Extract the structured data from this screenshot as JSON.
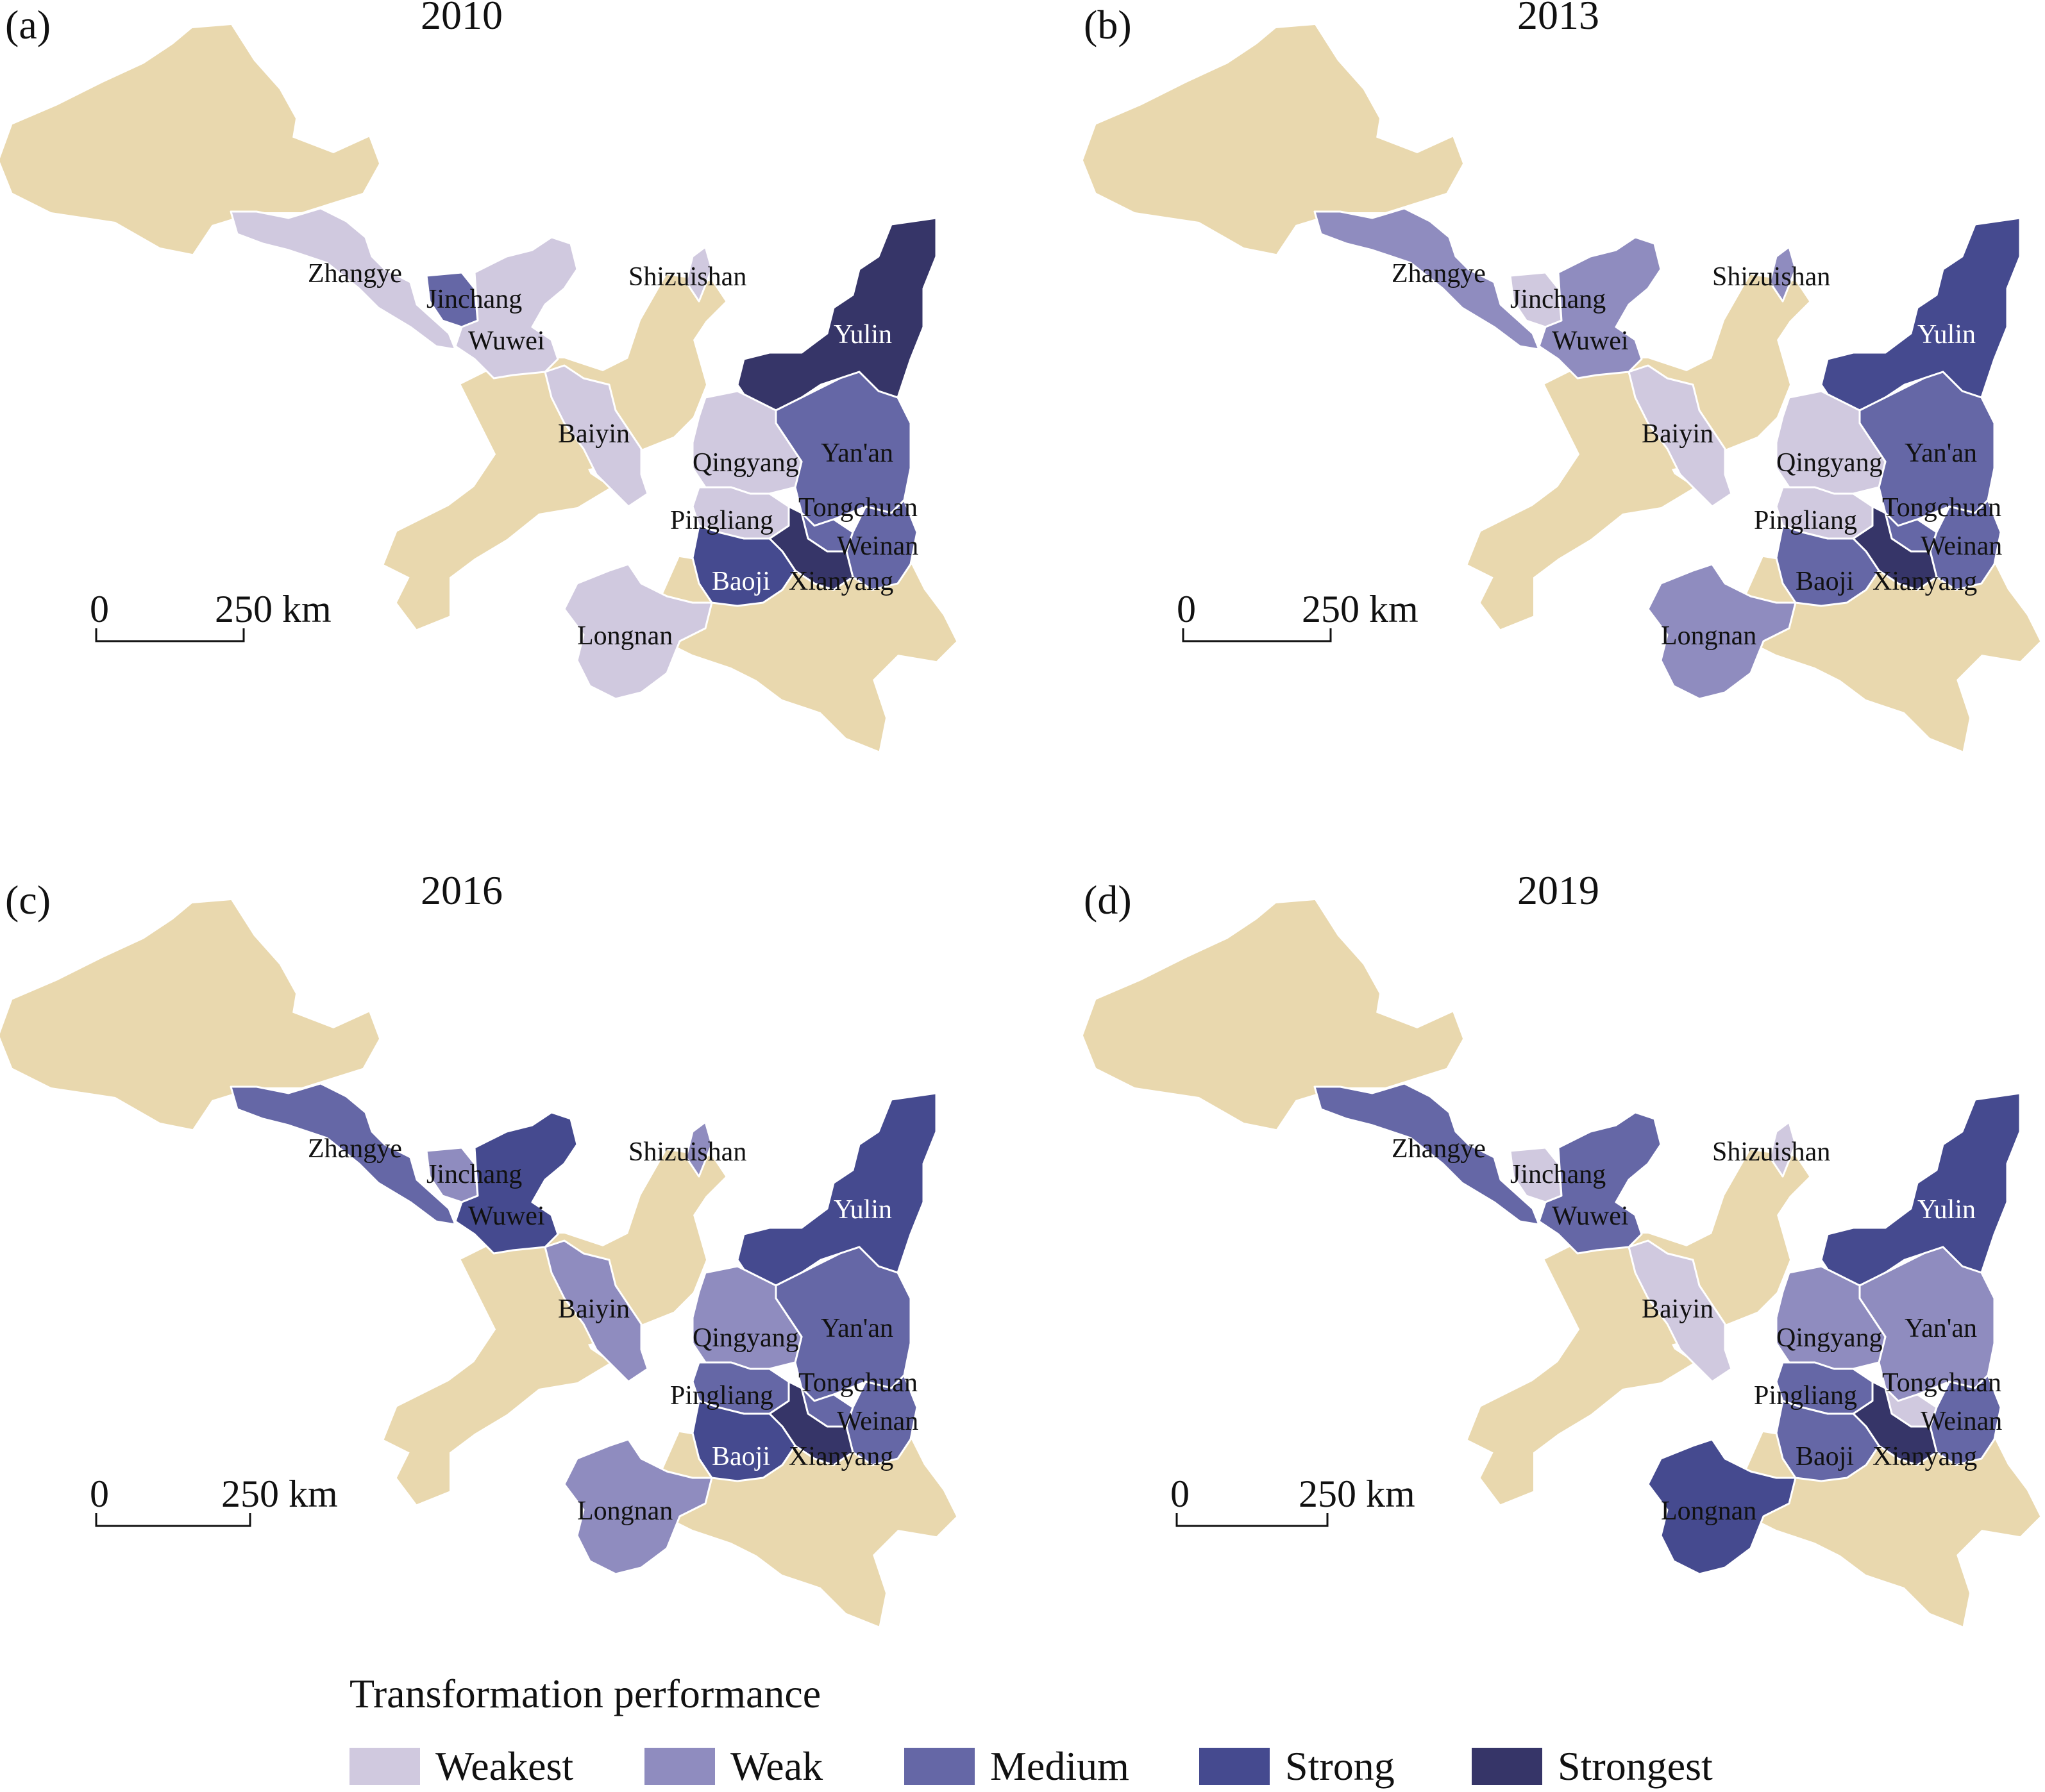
{
  "colors": {
    "background_province": "#e9d8ae",
    "weakest": "#d0c9df",
    "weak": "#8f8cbf",
    "medium": "#6567a6",
    "strong": "#454a8f",
    "strongest": "#363568",
    "border": "#ffffff"
  },
  "levels": [
    "weakest",
    "weak",
    "medium",
    "strong",
    "strongest"
  ],
  "panels": [
    {
      "letter": "(a)",
      "year": "2010",
      "scale": {
        "zero": "0",
        "distance": "250 km"
      },
      "cities": {
        "Zhangye": "weakest",
        "Jinchang": "medium",
        "Wuwei": "weakest",
        "Baiyin": "weakest",
        "Shizuishan": "weakest",
        "Yulin": "strongest",
        "Yan'an": "medium",
        "Qingyang": "weakest",
        "Pingliang": "weakest",
        "Tongchuan": "medium",
        "Weinan": "medium",
        "Xianyang": "strongest",
        "Baoji": "strong",
        "Longnan": "weakest"
      }
    },
    {
      "letter": "(b)",
      "year": "2013",
      "scale": {
        "zero": "0",
        "distance": "250 km"
      },
      "cities": {
        "Zhangye": "weak",
        "Jinchang": "weakest",
        "Wuwei": "weak",
        "Baiyin": "weakest",
        "Shizuishan": "weak",
        "Yulin": "strong",
        "Yan'an": "medium",
        "Qingyang": "weakest",
        "Pingliang": "weakest",
        "Tongchuan": "medium",
        "Weinan": "medium",
        "Xianyang": "strongest",
        "Baoji": "medium",
        "Longnan": "weak"
      }
    },
    {
      "letter": "(c)",
      "year": "2016",
      "scale": {
        "zero": "0",
        "distance": "250 km"
      },
      "cities": {
        "Zhangye": "medium",
        "Jinchang": "weak",
        "Wuwei": "strong",
        "Baiyin": "weak",
        "Shizuishan": "weak",
        "Yulin": "strong",
        "Yan'an": "medium",
        "Qingyang": "weak",
        "Pingliang": "medium",
        "Tongchuan": "medium",
        "Weinan": "medium",
        "Xianyang": "strongest",
        "Baoji": "strong",
        "Longnan": "weak"
      }
    },
    {
      "letter": "(d)",
      "year": "2019",
      "scale": {
        "zero": "0",
        "distance": "250 km"
      },
      "cities": {
        "Zhangye": "medium",
        "Jinchang": "weakest",
        "Wuwei": "medium",
        "Baiyin": "weakest",
        "Shizuishan": "weakest",
        "Yulin": "strong",
        "Yan'an": "weak",
        "Qingyang": "weak",
        "Pingliang": "medium",
        "Tongchuan": "weakest",
        "Weinan": "medium",
        "Xianyang": "strongest",
        "Baoji": "medium",
        "Longnan": "strong"
      }
    }
  ],
  "legend": {
    "title": "Transformation performance",
    "items": [
      {
        "level": "weakest",
        "label": "Weakest"
      },
      {
        "level": "weak",
        "label": "Weak"
      },
      {
        "level": "medium",
        "label": "Medium"
      },
      {
        "level": "strong",
        "label": "Strong"
      },
      {
        "level": "strongest",
        "label": "Strongest"
      }
    ]
  }
}
